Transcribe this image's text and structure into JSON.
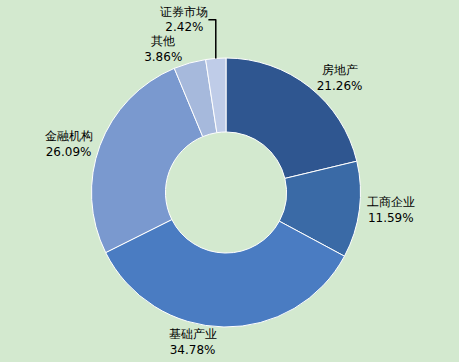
{
  "chart_data": {
    "type": "pie",
    "categories": [
      "房地产",
      "工商企业",
      "基础产业",
      "金融机构",
      "其他",
      "证券市场"
    ],
    "values": [
      21.26,
      11.59,
      34.78,
      26.09,
      3.86,
      2.42
    ],
    "value_labels": [
      "21.26%",
      "11.59%",
      "34.78%",
      "26.09%",
      "3.86%",
      "2.42%"
    ],
    "colors": [
      "#2f5690",
      "#3a6aa6",
      "#4a7cc2",
      "#7a99cf",
      "#a6b9dc",
      "#bfcce8"
    ],
    "data_labels": true
  }
}
